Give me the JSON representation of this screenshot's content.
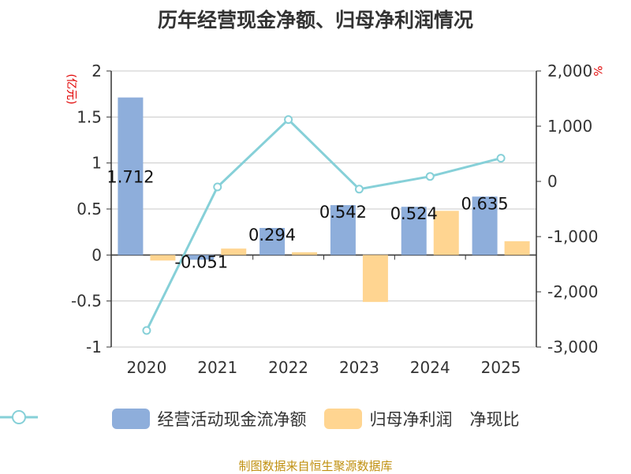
{
  "title": "历年经营现金净额、归母净利润情况",
  "left_unit": "(亿元)",
  "right_unit": "%",
  "legend": {
    "bar1": "经营活动现金流净额",
    "bar2": "归母净利润",
    "line": "净现比"
  },
  "footer": "制图数据来自恒生聚源数据库",
  "colors": {
    "bar1": "#8eaedb",
    "bar2": "#ffd591",
    "line": "#86d0d8",
    "grid": "#c8c8c8",
    "axis": "#333333"
  },
  "chart_data": {
    "type": "bar",
    "categories": [
      "2020",
      "2021",
      "2022",
      "2023",
      "2024",
      "2025"
    ],
    "series": [
      {
        "name": "经营活动现金流净额",
        "axis": "left",
        "type": "bar",
        "values": [
          1.712,
          -0.051,
          0.294,
          0.542,
          0.524,
          0.635
        ]
      },
      {
        "name": "归母净利润",
        "axis": "left",
        "type": "bar",
        "values": [
          -0.06,
          0.07,
          0.03,
          -0.51,
          0.48,
          0.15
        ]
      },
      {
        "name": "净现比",
        "axis": "right",
        "type": "line",
        "values": [
          -2700,
          -100,
          1120,
          -140,
          90,
          420
        ]
      }
    ],
    "data_labels": [
      "1.712",
      "-0.051",
      "0.294",
      "0.542",
      "0.524",
      "0.635"
    ],
    "left_axis": {
      "min": -1,
      "max": 2,
      "ticks": [
        "-1",
        "-0.5",
        "0",
        "0.5",
        "1",
        "1.5",
        "2"
      ]
    },
    "right_axis": {
      "min": -3000,
      "max": 2000,
      "ticks": [
        "-3,000",
        "-2,000",
        "-1,000",
        "0",
        "1,000",
        "2,000"
      ]
    },
    "grid": true,
    "legend_position": "bottom"
  }
}
